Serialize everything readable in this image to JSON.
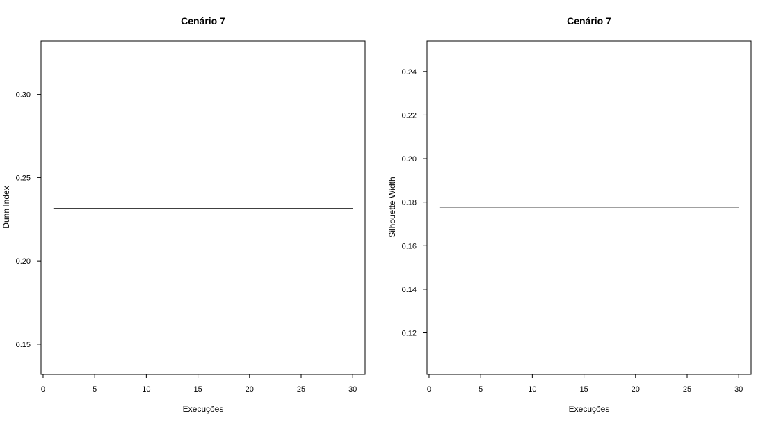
{
  "chart_data": [
    {
      "type": "line",
      "title": "Cenário 7",
      "xlabel": "Execuções",
      "ylabel": "Dunn Index",
      "xlim": [
        -0.2,
        31.2
      ],
      "ylim": [
        0.132,
        0.332
      ],
      "xticks": [
        0,
        5,
        10,
        15,
        20,
        25,
        30
      ],
      "yticks": [
        0.15,
        0.2,
        0.25,
        0.3
      ],
      "ytick_labels": [
        "0.15",
        "0.20",
        "0.25",
        "0.30"
      ],
      "x_axis_range": [
        0,
        30
      ],
      "y_axis_range": [
        0.15,
        0.3
      ],
      "series": [
        {
          "x_start": 1,
          "x_end": 30,
          "value": 0.2315
        }
      ]
    },
    {
      "type": "line",
      "title": "Cenário 7",
      "xlabel": "Execuções",
      "ylabel": "Silhouette Width",
      "xlim": [
        -0.2,
        31.2
      ],
      "ylim": [
        0.101,
        0.254
      ],
      "xticks": [
        0,
        5,
        10,
        15,
        20,
        25,
        30
      ],
      "yticks": [
        0.12,
        0.14,
        0.16,
        0.18,
        0.2,
        0.22,
        0.24
      ],
      "ytick_labels": [
        "0.12",
        "0.14",
        "0.16",
        "0.18",
        "0.20",
        "0.22",
        "0.24"
      ],
      "x_axis_range": [
        0,
        30
      ],
      "y_axis_range": [
        0.12,
        0.24
      ],
      "series": [
        {
          "x_start": 1,
          "x_end": 30,
          "value": 0.1777
        }
      ]
    }
  ]
}
